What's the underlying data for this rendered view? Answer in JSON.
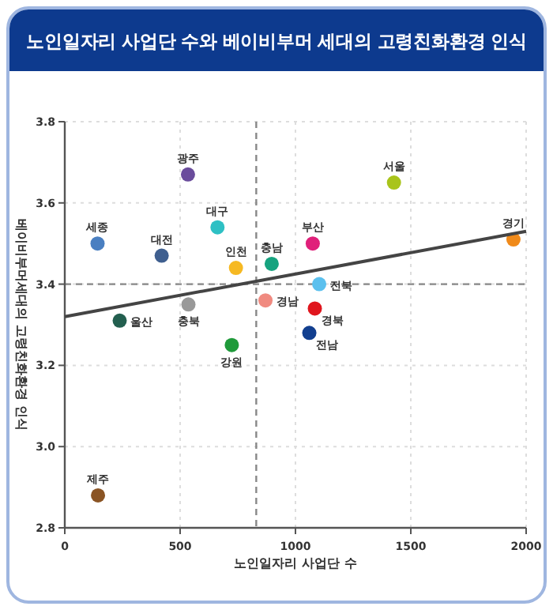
{
  "chart_data": {
    "type": "scatter",
    "title": "노인일자리 사업단 수와 베이비부머 세대의 고령친화환경 인식",
    "xlabel": "노인일자리 사업단 수",
    "ylabel": "베이비부머세대의 고령친화환경 인식",
    "xlim": [
      0,
      2000
    ],
    "ylim": [
      2.8,
      3.8
    ],
    "xticks": [
      0,
      500,
      1000,
      1500,
      2000
    ],
    "yticks": [
      {
        "value": 2.8,
        "label": "2.8"
      },
      {
        "value": 3.0,
        "label": "3.0"
      },
      {
        "value": 3.2,
        "label": "3.2"
      },
      {
        "value": 3.4,
        "label": "3.4"
      },
      {
        "value": 3.6,
        "label": "3.6"
      },
      {
        "value": 3.8,
        "label": "3.8"
      }
    ],
    "grid": true,
    "marker": "circle",
    "ref_lines": [
      {
        "axis": "x",
        "value": 830,
        "color": "#888888",
        "line_style": "dashed"
      },
      {
        "axis": "y",
        "value": 3.4,
        "color": "#888888",
        "line_style": "dashed"
      }
    ],
    "series": [
      {
        "name": "광주",
        "color": "#6a4c9c",
        "x": [
          534
        ],
        "values": [
          3.67
        ]
      },
      {
        "name": "서울",
        "color": "#a9c41b",
        "x": [
          1427
        ],
        "values": [
          3.65
        ]
      },
      {
        "name": "세종",
        "color": "#4a7fc1",
        "x": [
          142
        ],
        "values": [
          3.5
        ]
      },
      {
        "name": "대전",
        "color": "#3f5f8f",
        "x": [
          420
        ],
        "values": [
          3.47
        ]
      },
      {
        "name": "대구",
        "color": "#2ec0c4",
        "x": [
          662
        ],
        "values": [
          3.54
        ]
      },
      {
        "name": "인천",
        "color": "#f6b922",
        "x": [
          742
        ],
        "values": [
          3.44
        ]
      },
      {
        "name": "충남",
        "color": "#16a37f",
        "x": [
          897
        ],
        "values": [
          3.45
        ]
      },
      {
        "name": "부산",
        "color": "#e0207a",
        "x": [
          1075
        ],
        "values": [
          3.5
        ]
      },
      {
        "name": "경기",
        "color": "#f08a1a",
        "x": [
          1945
        ],
        "values": [
          3.51
        ]
      },
      {
        "name": "전북",
        "color": "#5bc0ee",
        "x": [
          1103
        ],
        "values": [
          3.4
        ]
      },
      {
        "name": "경남",
        "color": "#f08a80",
        "x": [
          870
        ],
        "values": [
          3.36
        ]
      },
      {
        "name": "충북",
        "color": "#999999",
        "x": [
          536
        ],
        "values": [
          3.35
        ]
      },
      {
        "name": "경북",
        "color": "#e0161e",
        "x": [
          1084
        ],
        "values": [
          3.34
        ]
      },
      {
        "name": "울산",
        "color": "#235f4f",
        "x": [
          238
        ],
        "values": [
          3.31
        ]
      },
      {
        "name": "전남",
        "color": "#123f8f",
        "x": [
          1060
        ],
        "values": [
          3.28
        ]
      },
      {
        "name": "강원",
        "color": "#1f9a3a",
        "x": [
          724
        ],
        "values": [
          3.25
        ]
      },
      {
        "name": "제주",
        "color": "#8a5424",
        "x": [
          144
        ],
        "values": [
          2.88
        ]
      },
      {
        "type": "line",
        "color": "#444444",
        "x": [
          0,
          2000
        ],
        "values": [
          3.32,
          3.53
        ],
        "marker": "none"
      }
    ]
  }
}
